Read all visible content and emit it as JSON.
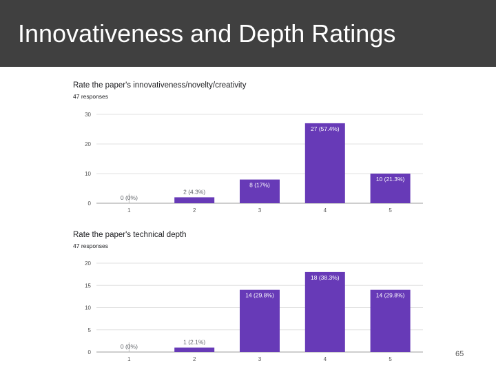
{
  "slide": {
    "title": "Innovativeness and Depth Ratings",
    "page_number": "65"
  },
  "colors": {
    "title_bar": "#404040",
    "bar": "#673ab7",
    "gridline": "#e0e0e0",
    "axis": "#9e9e9e"
  },
  "chart_data": [
    {
      "type": "bar",
      "title": "Rate the paper's innovativeness/novelty/creativity",
      "subtitle": "47 responses",
      "categories": [
        "1",
        "2",
        "3",
        "4",
        "5"
      ],
      "values": [
        0,
        2,
        8,
        27,
        10
      ],
      "data_labels": [
        "0 (0%)",
        "2 (4.3%)",
        "8 (17%)",
        "27 (57.4%)",
        "10 (21.3%)"
      ],
      "yticks": [
        0,
        10,
        20,
        30
      ],
      "ylim": [
        0,
        30
      ],
      "xlabel": "",
      "ylabel": "",
      "grid": true
    },
    {
      "type": "bar",
      "title": "Rate the paper's technical depth",
      "subtitle": "47 responses",
      "categories": [
        "1",
        "2",
        "3",
        "4",
        "5"
      ],
      "values": [
        0,
        1,
        14,
        18,
        14
      ],
      "data_labels": [
        "0 (0%)",
        "1 (2.1%)",
        "14 (29.8%)",
        "18 (38.3%)",
        "14 (29.8%)"
      ],
      "yticks": [
        0,
        5,
        10,
        15,
        20
      ],
      "ylim": [
        0,
        20
      ],
      "xlabel": "",
      "ylabel": "",
      "grid": true
    }
  ]
}
